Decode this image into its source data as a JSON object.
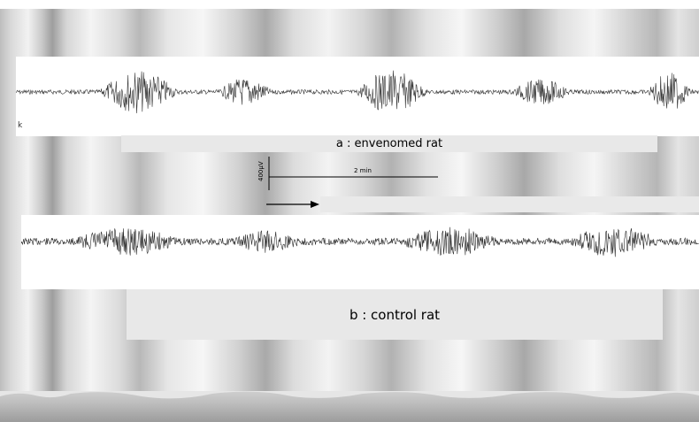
{
  "figure": {
    "background_color": "#d9d9d9",
    "panel_a": {
      "label": "a : envenomed rat",
      "trace_color": "#333333"
    },
    "panel_b": {
      "label": "b : control rat",
      "trace_color": "#2a2a2a"
    },
    "scale_bar": {
      "amplitude_label": "400µV",
      "time_label": "2 min"
    },
    "arrow": {
      "direction": "right"
    },
    "side_marker": "k"
  }
}
